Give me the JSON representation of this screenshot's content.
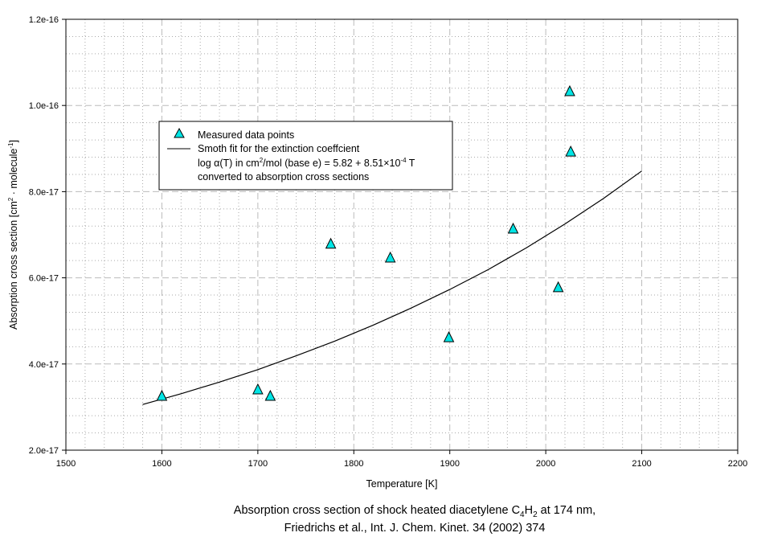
{
  "chart_data": {
    "type": "scatter",
    "xlabel": "Temperature [K]",
    "ylabel": "Absorption cross section [cm² · molecule⁻¹]",
    "ylabel_parts": [
      "Absorption cross section [cm",
      "2",
      " · molecule",
      "-1",
      "]"
    ],
    "xlim": [
      1500,
      2200
    ],
    "ylim": [
      2e-17,
      1.2e-16
    ],
    "x_ticks": [
      1500,
      1600,
      1700,
      1800,
      1900,
      2000,
      2100,
      2200
    ],
    "x_tick_labels": [
      "1500",
      "1600",
      "1700",
      "1800",
      "1900",
      "2000",
      "2100",
      "2200"
    ],
    "y_ticks": [
      2e-17,
      4e-17,
      6e-17,
      8e-17,
      1e-16,
      1.2e-16
    ],
    "y_tick_labels": [
      "2.0e-17",
      "4.0e-17",
      "6.0e-17",
      "8.0e-17",
      "1.0e-16",
      "1.2e-16"
    ],
    "x_minor_step": 20,
    "y_minor_step": 4e-18,
    "grid": true,
    "legend_placement": "upper-left",
    "series": [
      {
        "name": "Measured data points",
        "kind": "scatter",
        "marker": "triangle",
        "color": "#00e5e5",
        "x": [
          1600,
          1700,
          1713,
          1776,
          1838,
          1899,
          1966,
          2013,
          2025,
          2026
        ],
        "y": [
          3.25e-17,
          3.4e-17,
          3.25e-17,
          6.78e-17,
          6.46e-17,
          4.61e-17,
          7.13e-17,
          5.77e-17,
          1.032e-16,
          8.92e-17
        ]
      },
      {
        "name": "Smoth fit for the extinction coeffcient",
        "kind": "line",
        "color": "#000000",
        "x": [
          1580,
          1620,
          1660,
          1700,
          1740,
          1780,
          1820,
          1860,
          1900,
          1940,
          1980,
          2020,
          2060,
          2100
        ],
        "y": [
          3.06e-17,
          3.31e-17,
          3.58e-17,
          3.87e-17,
          4.19e-17,
          4.53e-17,
          4.9e-17,
          5.3e-17,
          5.73e-17,
          6.19e-17,
          6.7e-17,
          7.25e-17,
          7.84e-17,
          8.48e-17
        ]
      }
    ],
    "legend": {
      "entry1": "Measured data points",
      "entry2_line1": "Smoth fit for the extinction coeffcient",
      "entry2_line2a": "log α(T) in cm",
      "entry2_line2_sup1": "2",
      "entry2_line2b": "/mol (base e) = 5.82 + 8.51×10",
      "entry2_line2_sup2": "-4",
      "entry2_line2c": " T",
      "entry2_line3": "converted to absorption cross sections"
    },
    "caption": {
      "line1a": "Absorption cross section of shock heated diacetylene C",
      "sub1": "4",
      "line1b": "H",
      "sub2": "2",
      "line1c": " at 174 nm,",
      "line2": "Friedrichs et al., Int. J. Chem. Kinet.  34 (2002) 374"
    }
  }
}
